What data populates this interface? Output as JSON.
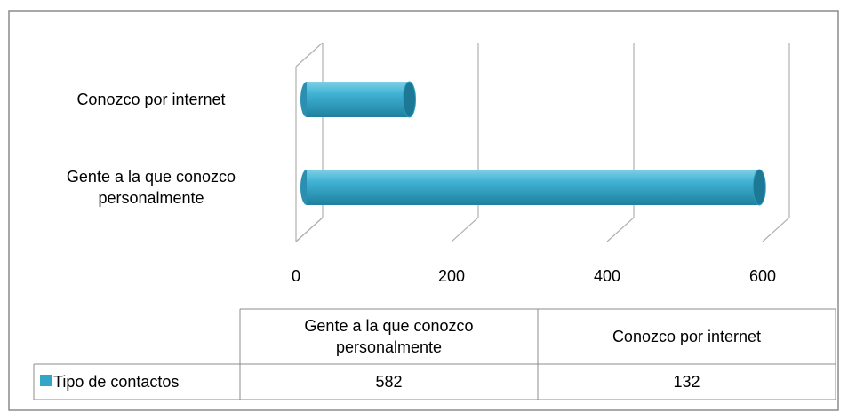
{
  "chart_data": {
    "type": "bar",
    "orientation": "horizontal",
    "categories": [
      "Gente a la que conozco personalmente",
      "Conozco por internet"
    ],
    "series": [
      {
        "name": "Tipo de contactos",
        "color": "#31a6c9",
        "values": [
          582,
          132
        ]
      }
    ],
    "xlim": [
      0,
      600
    ],
    "xticks": [
      0,
      200,
      400,
      600
    ],
    "grid": true,
    "data_table": true
  }
}
